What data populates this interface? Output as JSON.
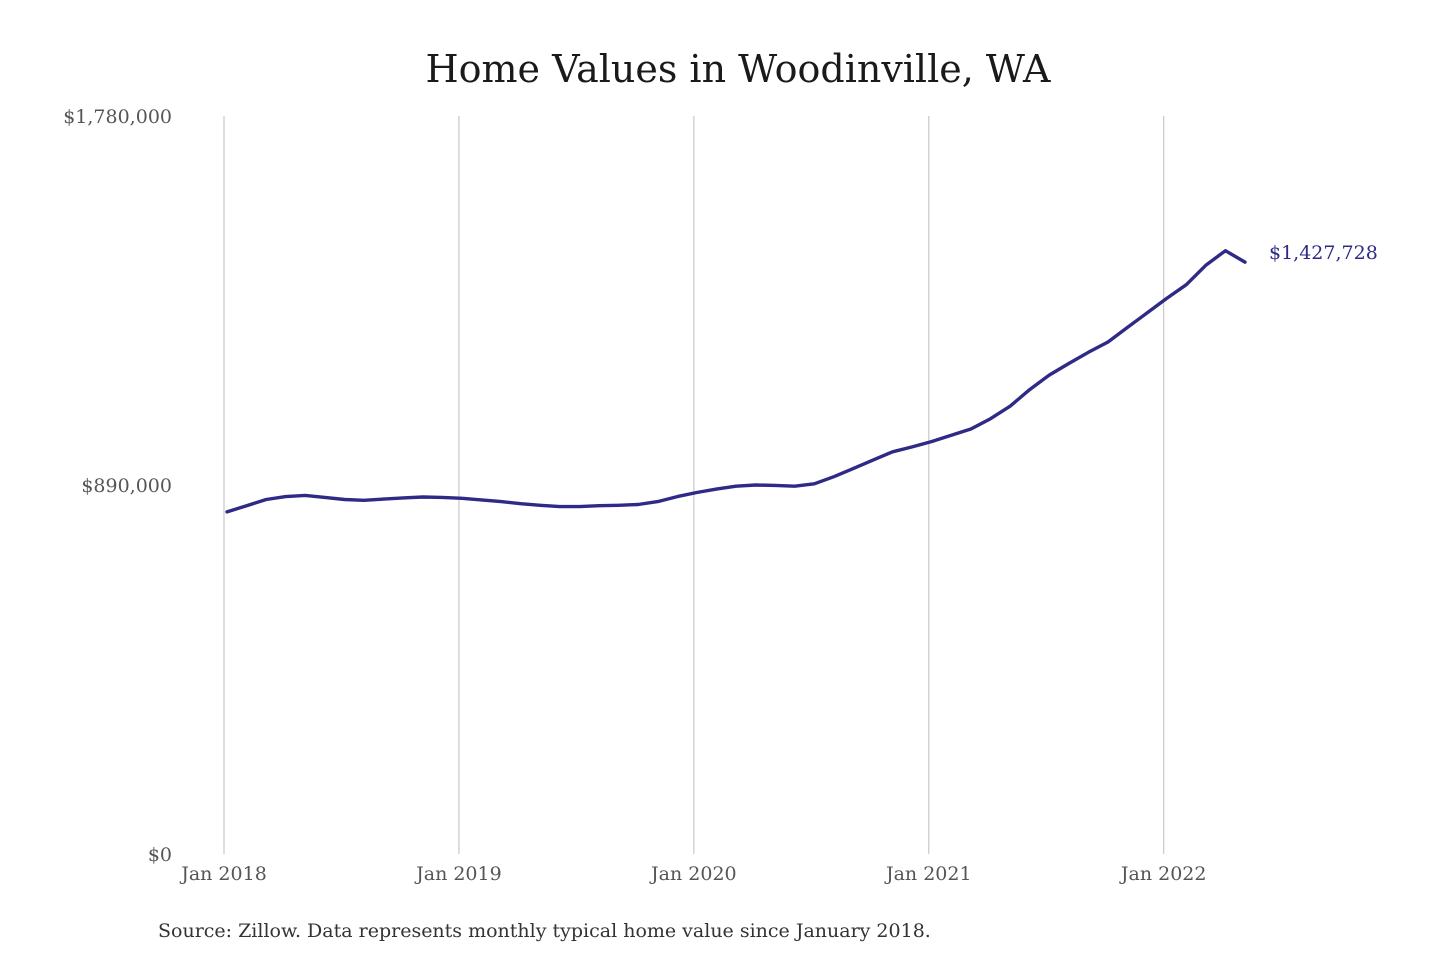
{
  "chart_data": {
    "type": "line",
    "title": "Home Values in Woodinville, WA",
    "source": "Source: Zillow. Data represents monthly typical home value since January 2018.",
    "xlabel": "",
    "ylabel": "",
    "ylim": [
      0,
      1780000
    ],
    "yticks": [
      0,
      890000,
      1780000
    ],
    "ytick_labels": [
      "$0",
      "$890,000",
      "$1,780,000"
    ],
    "xlim": [
      "2018-01",
      "2022-05"
    ],
    "xticks": [
      "2018-01",
      "2019-01",
      "2020-01",
      "2021-01",
      "2022-01"
    ],
    "xtick_labels": [
      "Jan 2018",
      "Jan 2019",
      "Jan 2020",
      "Jan 2021",
      "Jan 2022"
    ],
    "grid": "vertical",
    "line_color": "#2e2a85",
    "end_label": "$1,427,728",
    "series": [
      {
        "x": [
          "2018-01",
          "2018-02",
          "2018-03",
          "2018-04",
          "2018-05",
          "2018-06",
          "2018-07",
          "2018-08",
          "2018-09",
          "2018-10",
          "2018-11",
          "2018-12",
          "2019-01",
          "2019-02",
          "2019-03",
          "2019-04",
          "2019-05",
          "2019-06",
          "2019-07",
          "2019-08",
          "2019-09",
          "2019-10",
          "2019-11",
          "2019-12",
          "2020-01",
          "2020-02",
          "2020-03",
          "2020-04",
          "2020-05",
          "2020-06",
          "2020-07",
          "2020-08",
          "2020-09",
          "2020-10",
          "2020-11",
          "2020-12",
          "2021-01",
          "2021-02",
          "2021-03",
          "2021-04",
          "2021-05",
          "2021-06",
          "2021-07",
          "2021-08",
          "2021-09",
          "2021-10",
          "2021-11",
          "2021-12",
          "2022-01",
          "2022-02",
          "2022-03",
          "2022-04",
          "2022-05"
        ],
        "values": [
          825000,
          840000,
          855000,
          862000,
          865000,
          860000,
          855000,
          853000,
          856000,
          859000,
          861000,
          860000,
          858000,
          854000,
          850000,
          845000,
          841000,
          838000,
          838000,
          840000,
          841000,
          843000,
          850000,
          862000,
          872000,
          880000,
          887000,
          890000,
          889000,
          887000,
          893000,
          910000,
          930000,
          950000,
          970000,
          982000,
          995000,
          1010000,
          1025000,
          1050000,
          1080000,
          1120000,
          1155000,
          1183000,
          1210000,
          1235000,
          1270000,
          1305000,
          1340000,
          1373000,
          1420000,
          1455000,
          1427728
        ]
      }
    ]
  }
}
